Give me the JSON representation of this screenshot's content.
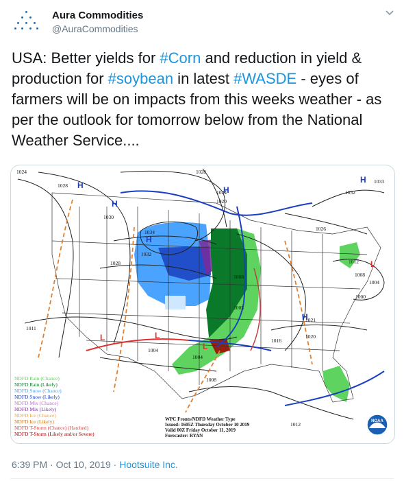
{
  "tweet": {
    "author_name": "Aura Commodities",
    "author_handle": "@AuraCommodities",
    "text_segments": [
      {
        "text": "USA: Better yields for ",
        "type": "text"
      },
      {
        "text": "#Corn",
        "type": "hashtag"
      },
      {
        "text": " and reduction in yield & production for ",
        "type": "text"
      },
      {
        "text": "#soybean",
        "type": "hashtag"
      },
      {
        "text": " in latest ",
        "type": "text"
      },
      {
        "text": "#WASDE",
        "type": "hashtag"
      },
      {
        "text": " - eyes of farmers will be on impacts from this weeks weather - as per the outlook for tomorrow below from the National Weather Service....",
        "type": "text"
      }
    ],
    "time": "6:39 PM",
    "date": "Oct 10, 2019",
    "separator": "·",
    "source": "Hootsuite Inc.",
    "hashtag_color": "#1b95e0"
  },
  "map": {
    "isobars": [
      "1024",
      "1028",
      "1028",
      "1024",
      "1020",
      "1030",
      "1034",
      "1032",
      "1028",
      "1008",
      "1005",
      "1004",
      "1004",
      "1008",
      "1016",
      "1020",
      "1021",
      "1012",
      "1008",
      "1004",
      "1000",
      "1026",
      "1032",
      "1033",
      "1011",
      "1012"
    ],
    "pressure_centers": [
      "H",
      "H",
      "H",
      "H",
      "H",
      "L",
      "L",
      "L",
      "L",
      "L"
    ],
    "legend": [
      {
        "label": "NDFD Rain (Chance)",
        "color": "#5fd35f"
      },
      {
        "label": "NDFD Rain (Likely)",
        "color": "#0a7a2a"
      },
      {
        "label": "NDFD Snow (Chance)",
        "color": "#4aa3ff"
      },
      {
        "label": "NDFD Snow (Likely)",
        "color": "#1a3fbf"
      },
      {
        "label": "NDFD Mix (Chance)",
        "color": "#c070d0"
      },
      {
        "label": "NDFD Mix (Likely)",
        "color": "#7a2a9a"
      },
      {
        "label": "NDFD Ice (Chance)",
        "color": "#f0a040"
      },
      {
        "label": "NDFD Ice (Likely)",
        "color": "#d07010"
      },
      {
        "label": "NDFD T-Storm (Chance) (Hatched)",
        "color": "#e04040"
      },
      {
        "label": "NDFD T-Storm (Likely and/or Severe)",
        "color": "#a00000"
      }
    ],
    "stamp": [
      "WPC Fronts/NDFD Weather Type",
      "Issued: 1605Z Thursday October 10 2019",
      "Valid 00Z Friday October 11, 2019",
      "Forecaster: RYAN"
    ],
    "logo_text": "NOAA"
  }
}
